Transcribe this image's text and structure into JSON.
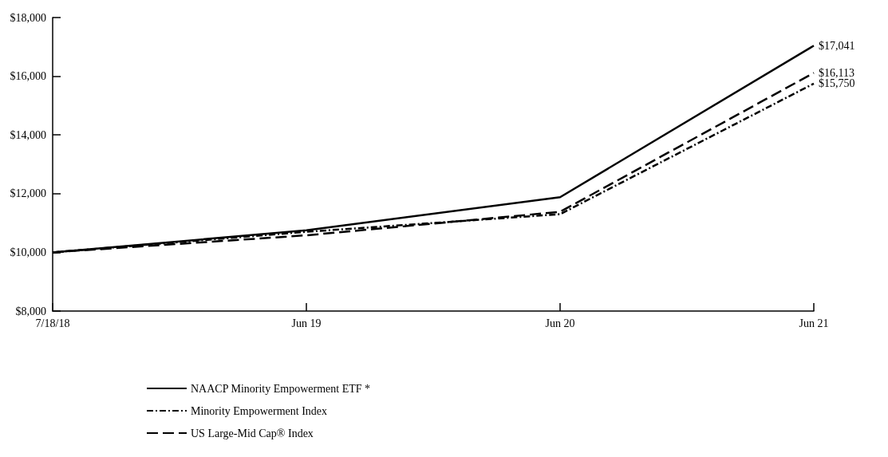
{
  "chart_data": {
    "type": "line",
    "categories": [
      "7/18/18",
      "Jun 19",
      "Jun 20",
      "Jun 21"
    ],
    "series": [
      {
        "name": "NAACP Minority Empowerment ETF *",
        "color": "#000000",
        "line_style": "solid",
        "values": [
          10000,
          10750,
          11880,
          17041
        ],
        "value_labels": [
          null,
          null,
          null,
          "$17,041"
        ]
      },
      {
        "name": "Minority Empowerment Index",
        "color": "#000000",
        "line_style": "dashdot",
        "values": [
          10000,
          10700,
          11300,
          15750
        ],
        "value_labels": [
          null,
          null,
          null,
          "$15,750"
        ]
      },
      {
        "name": "US Large-Mid Cap® Index",
        "color": "#000000",
        "line_style": "dashed",
        "values": [
          10000,
          10580,
          11380,
          16113
        ],
        "value_labels": [
          null,
          null,
          null,
          "$16,113"
        ]
      }
    ],
    "ylim": [
      8000,
      18000
    ],
    "yticks": [
      {
        "value": 8000,
        "label": "$8,000"
      },
      {
        "value": 10000,
        "label": "$10,000"
      },
      {
        "value": 12000,
        "label": "$12,000"
      },
      {
        "value": 14000,
        "label": "$14,000"
      },
      {
        "value": 16000,
        "label": "$16,000"
      },
      {
        "value": 18000,
        "label": "$18,000"
      }
    ],
    "grid": false,
    "legend": "bottom",
    "marker": "none"
  }
}
